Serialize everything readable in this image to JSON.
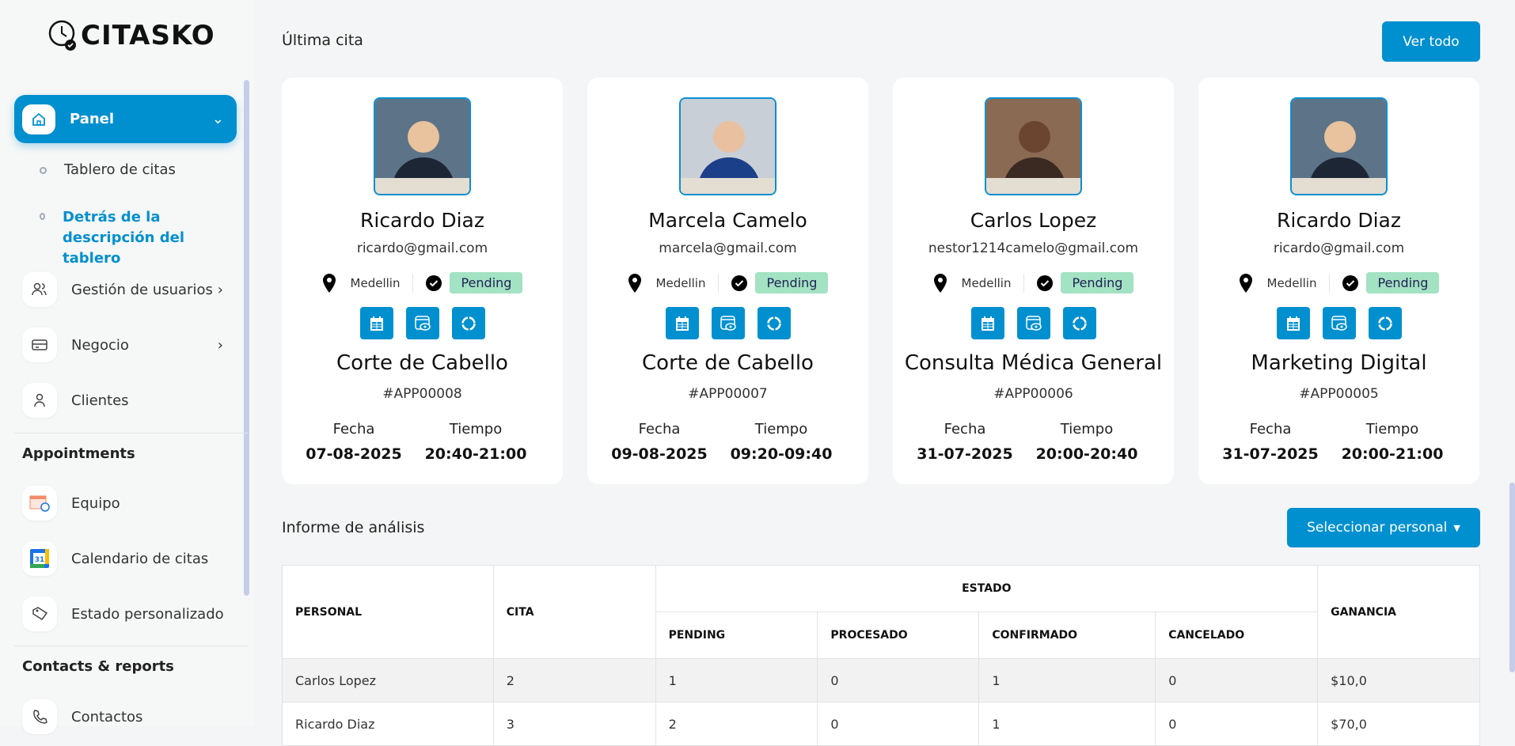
{
  "brand": {
    "name": "CITASKO"
  },
  "sidebar": {
    "panel": {
      "label": "Panel",
      "icon": "home-icon"
    },
    "sub_items": [
      {
        "label": "Tablero de citas"
      },
      {
        "label": "Detrás de la descripción del tablero",
        "active": true
      }
    ],
    "items": [
      {
        "label": "Gestión de usuarios",
        "icon": "users-icon"
      },
      {
        "label": "Negocio",
        "icon": "card-icon"
      },
      {
        "label": "Clientes",
        "icon": "user-icon"
      }
    ],
    "sections": [
      {
        "title": "Appointments",
        "items": [
          {
            "label": "Equipo",
            "icon": "calendar-clock-icon"
          },
          {
            "label": "Calendario de citas",
            "icon": "google-calendar-icon"
          },
          {
            "label": "Estado personalizado",
            "icon": "tag-icon"
          }
        ]
      },
      {
        "title": "Contacts & reports",
        "items": [
          {
            "label": "Contactos",
            "icon": "phone-icon"
          }
        ]
      }
    ]
  },
  "last": {
    "title": "Última cita",
    "view_all": "Ver todo",
    "fecha_label": "Fecha",
    "tiempo_label": "Tiempo",
    "cards": [
      {
        "name": "Ricardo Diaz",
        "email": "ricardo@gmail.com",
        "location": "Medellin",
        "status": "Pending",
        "service": "Corte de Cabello",
        "id": "#APP00008",
        "fecha": "07-08-2025",
        "tiempo": "20:40-21:00"
      },
      {
        "name": "Marcela Camelo",
        "email": "marcela@gmail.com",
        "location": "Medellin",
        "status": "Pending",
        "service": "Corte de Cabello",
        "id": "#APP00007",
        "fecha": "09-08-2025",
        "tiempo": "09:20-09:40"
      },
      {
        "name": "Carlos Lopez",
        "email": "nestor1214camelo@gmail.com",
        "location": "Medellin",
        "status": "Pending",
        "service": "Consulta Médica General",
        "id": "#APP00006",
        "fecha": "31-07-2025",
        "tiempo": "20:00-20:40"
      },
      {
        "name": "Ricardo Diaz",
        "email": "ricardo@gmail.com",
        "location": "Medellin",
        "status": "Pending",
        "service": "Marketing Digital",
        "id": "#APP00005",
        "fecha": "31-07-2025",
        "tiempo": "20:00-21:00"
      }
    ]
  },
  "report": {
    "title": "Informe de análisis",
    "select": "Seleccionar personal",
    "headers": {
      "personal": "PERSONAL",
      "cita": "CITA",
      "estado": "ESTADO",
      "pending": "PENDING",
      "procesado": "PROCESADO",
      "confirmado": "CONFIRMADO",
      "cancelado": "CANCELADO",
      "ganancia": "GANANCIA"
    },
    "rows": [
      [
        "Carlos Lopez",
        "2",
        "1",
        "0",
        "1",
        "0",
        "$10,0"
      ],
      [
        "Ricardo Diaz",
        "3",
        "2",
        "0",
        "1",
        "0",
        "$70,0"
      ]
    ]
  },
  "colors": {
    "accent": "#0190cf",
    "pending_badge": "#a3e2c2"
  }
}
